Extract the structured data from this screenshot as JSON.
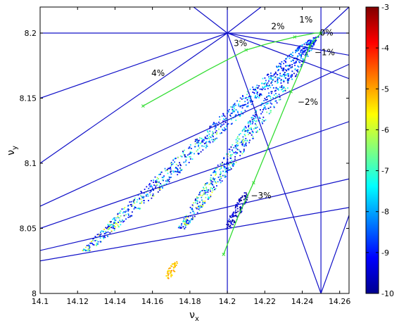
{
  "chart_data": {
    "type": "heatmap",
    "title": "",
    "xlabel": "ν",
    "xlabel_sub": "x",
    "ylabel": "ν",
    "ylabel_sub": "y",
    "xlim": [
      14.1,
      14.265
    ],
    "ylim": [
      8.0,
      8.22
    ],
    "x_ticks": [
      "14.1",
      "14.12",
      "14.14",
      "14.16",
      "14.18",
      "14.2",
      "14.22",
      "14.24",
      "14.26"
    ],
    "y_ticks": [
      "8",
      "8.05",
      "8.1",
      "8.15",
      "8.2"
    ],
    "colorbar": {
      "range": [
        -10,
        -3
      ],
      "ticks": [
        "-3",
        "-4",
        "-5",
        "-6",
        "-7",
        "-8",
        "-9",
        "-10"
      ],
      "colormap": "jet"
    },
    "resonance_line_color": "#1010c8",
    "resonance_lines": [
      {
        "p": [
          14.1,
          8.2
        ],
        "q": [
          14.265,
          8.2
        ]
      },
      {
        "p": [
          14.2,
          8.0
        ],
        "q": [
          14.2,
          8.22
        ]
      },
      {
        "p": [
          14.25,
          8.0
        ],
        "q": [
          14.25,
          8.22
        ]
      },
      {
        "p": [
          14.1,
          8.15
        ],
        "q": [
          14.2,
          8.2
        ]
      },
      {
        "p": [
          14.1,
          8.1
        ],
        "q": [
          14.2,
          8.2
        ]
      },
      {
        "p": [
          14.2,
          8.2
        ],
        "q": [
          14.265,
          8.183
        ]
      },
      {
        "p": [
          14.2,
          8.2
        ],
        "q": [
          14.265,
          8.165
        ]
      },
      {
        "p": [
          14.2,
          8.2
        ],
        "q": [
          14.25,
          8.0
        ]
      },
      {
        "p": [
          14.2,
          8.2
        ],
        "q": [
          14.218,
          8.22
        ]
      },
      {
        "p": [
          14.2,
          8.2
        ],
        "q": [
          14.182,
          8.22
        ]
      },
      {
        "p": [
          14.25,
          8.2
        ],
        "q": [
          14.265,
          8.22
        ]
      },
      {
        "p": [
          14.25,
          8.0
        ],
        "q": [
          14.265,
          8.06
        ]
      },
      {
        "p": [
          14.1,
          8.067
        ],
        "q": [
          14.265,
          8.176
        ]
      },
      {
        "p": [
          14.1,
          8.05
        ],
        "q": [
          14.265,
          8.132
        ]
      },
      {
        "p": [
          14.1,
          8.033
        ],
        "q": [
          14.265,
          8.088
        ]
      },
      {
        "p": [
          14.1,
          8.025
        ],
        "q": [
          14.265,
          8.066
        ]
      }
    ],
    "momentum_curve_color": "#33dd33",
    "momentum_curve": {
      "points": [
        [
          14.155,
          8.144
        ],
        [
          14.19,
          8.172
        ],
        [
          14.21,
          8.187
        ],
        [
          14.222,
          8.192
        ],
        [
          14.236,
          8.197
        ],
        [
          14.247,
          8.2
        ],
        [
          14.25,
          8.2
        ],
        [
          14.248,
          8.197
        ],
        [
          14.244,
          8.19
        ],
        [
          14.24,
          8.175
        ],
        [
          14.234,
          8.155
        ],
        [
          14.224,
          8.12
        ],
        [
          14.214,
          8.085
        ],
        [
          14.206,
          8.06
        ],
        [
          14.198,
          8.03
        ]
      ],
      "labels": [
        {
          "text": "0%",
          "x": 14.253,
          "y": 8.198
        },
        {
          "text": "1%",
          "x": 14.242,
          "y": 8.208
        },
        {
          "text": "2%",
          "x": 14.227,
          "y": 8.203
        },
        {
          "text": "3%",
          "x": 14.207,
          "y": 8.19
        },
        {
          "text": "4%",
          "x": 14.163,
          "y": 8.167
        },
        {
          "text": "−1%",
          "x": 14.252,
          "y": 8.183
        },
        {
          "text": "−2%",
          "x": 14.243,
          "y": 8.145
        },
        {
          "text": "−3%",
          "x": 14.218,
          "y": 8.073
        }
      ]
    },
    "diffusion_bands": [
      {
        "x0": 14.124,
        "y0": 8.033,
        "x1": 14.247,
        "y1": 8.198,
        "width": 0.0055,
        "cmin": -9.5,
        "cmax": -5
      },
      {
        "x0": 14.175,
        "y0": 8.05,
        "x1": 14.246,
        "y1": 8.195,
        "width": 0.0045,
        "cmin": -9.5,
        "cmax": -5
      },
      {
        "x0": 14.2,
        "y0": 8.05,
        "x1": 14.21,
        "y1": 8.078,
        "width": 0.0025,
        "cmin": -10,
        "cmax": -8.5
      },
      {
        "x0": 14.168,
        "y0": 8.012,
        "x1": 14.172,
        "y1": 8.025,
        "width": 0.002,
        "cmin": -5.5,
        "cmax": -4.5
      }
    ]
  }
}
